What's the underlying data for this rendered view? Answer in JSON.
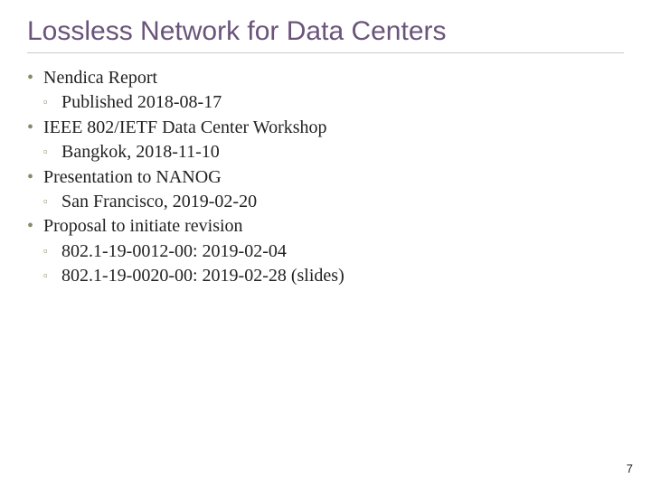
{
  "colors": {
    "title": "#6a547a",
    "bullet": "#8a8a6a",
    "text": "#222222",
    "rule": "#c9c9c9",
    "background": "#ffffff"
  },
  "typography": {
    "title_font": "Trebuchet MS",
    "title_size_pt": 30,
    "body_font": "Georgia",
    "body_size_pt": 20
  },
  "glyphs": {
    "level1": "•",
    "level2": "▫"
  },
  "title": "Lossless Network for Data Centers",
  "bullets": [
    {
      "text": "Nendica Report",
      "children": [
        {
          "text": "Published 2018-08-17"
        }
      ]
    },
    {
      "text": "IEEE 802/IETF Data Center Workshop",
      "children": [
        {
          "text": "Bangkok, 2018-11-10"
        }
      ]
    },
    {
      "text": "Presentation to NANOG",
      "children": [
        {
          "text": "San Francisco, 2019-02-20"
        }
      ]
    },
    {
      "text": "Proposal to initiate revision",
      "children": [
        {
          "text": "802.1-19-0012-00: 2019-02-04"
        },
        {
          "text": "802.1-19-0020-00: 2019-02-28 (slides)"
        }
      ]
    }
  ],
  "page_number": "7"
}
